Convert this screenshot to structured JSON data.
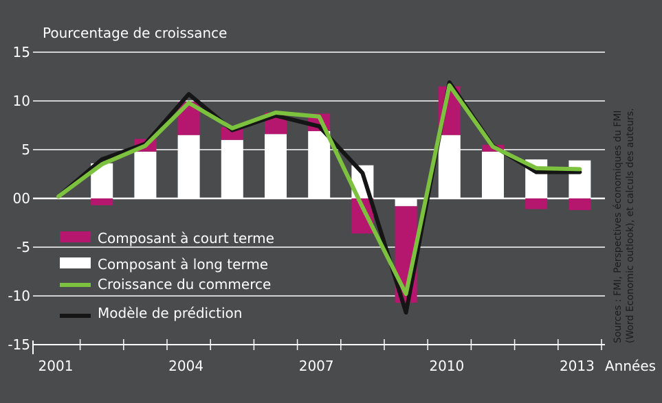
{
  "chart_data": {
    "type": "bar",
    "ylabel": "Pourcentage de croissance",
    "xlabel": "Années",
    "ylim": [
      -15,
      15
    ],
    "ytick_labels": [
      "15",
      "10",
      "5",
      "00",
      "-5",
      "-10",
      "-15"
    ],
    "ytick_values": [
      15,
      10,
      5,
      0,
      -5,
      -10,
      -15
    ],
    "xtick_labels": [
      "2001",
      "2004",
      "2007",
      "2010",
      "2013"
    ],
    "xtick_years": [
      2001,
      2004,
      2007,
      2010,
      2013
    ],
    "grid": "horizontal",
    "legend": {
      "placement": "lower-left",
      "items": [
        {
          "label": "Composant à court terme",
          "color": "#b5176f",
          "kind": "bar"
        },
        {
          "label": "Composant à long terme",
          "color": "#ffffff",
          "kind": "bar"
        },
        {
          "label": "Croissance du commerce",
          "color": "#7dc23e",
          "kind": "line"
        },
        {
          "label": "Modèle de prédiction",
          "color": "#151515",
          "kind": "line"
        }
      ]
    },
    "source": "Sources : FMI, Perspectives économiques du FMI (Word Economic outlook), et calculs des auteurs.",
    "years": [
      2001,
      2002,
      2003,
      2004,
      2005,
      2006,
      2007,
      2008,
      2009,
      2010,
      2011,
      2012,
      2013
    ],
    "long_term": [
      null,
      3.6,
      4.8,
      6.5,
      6.0,
      6.6,
      6.9,
      3.4,
      -0.8,
      6.5,
      4.8,
      4.0,
      3.9
    ],
    "short_term": [
      null,
      -0.7,
      1.3,
      3.4,
      1.3,
      2.2,
      1.8,
      -3.6,
      -9.9,
      5.0,
      0.7,
      -1.1,
      -1.2
    ],
    "trade_growth": [
      0.2,
      3.5,
      5.4,
      9.8,
      7.2,
      8.8,
      8.4,
      -0.9,
      -9.8,
      11.6,
      5.3,
      3.1,
      3.0
    ],
    "prediction": [
      0.2,
      4.0,
      5.6,
      10.7,
      7.0,
      8.5,
      7.4,
      2.6,
      -11.7,
      11.9,
      5.4,
      2.7,
      2.7
    ]
  }
}
